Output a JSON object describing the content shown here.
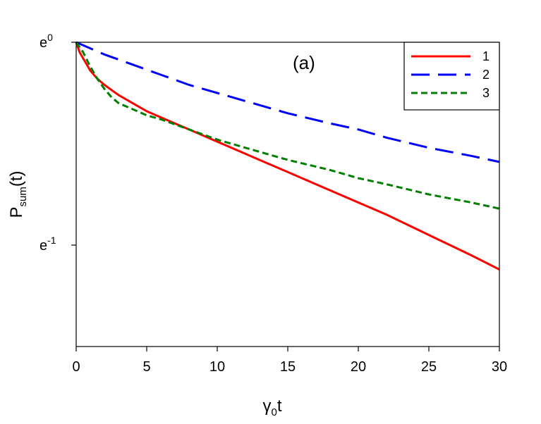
{
  "chart_data": {
    "type": "line",
    "panel_label": "(a)",
    "xlabel": {
      "symbol": "γ",
      "subscript": "0",
      "suffix": "t"
    },
    "ylabel": {
      "base": "P",
      "subscript": "sum",
      "suffix": "(t)"
    },
    "xlim": [
      0,
      30
    ],
    "ylim_ln": [
      -1.5,
      0
    ],
    "yscale": "log",
    "x_ticks": [
      0,
      5,
      10,
      15,
      20,
      25,
      30
    ],
    "y_ticks": [
      {
        "ln_value": 0,
        "base": "e",
        "exponent": "0"
      },
      {
        "ln_value": -1,
        "base": "e",
        "exponent": "-1"
      }
    ],
    "grid": false,
    "legend_position": "top-right",
    "series": [
      {
        "name": "1",
        "color": "#ff0000",
        "style": "solid",
        "x": [
          0,
          0.25,
          0.5,
          1,
          1.5,
          2,
          3,
          4,
          5,
          6,
          8,
          10,
          12,
          15,
          18,
          20,
          22,
          25,
          28,
          30
        ],
        "y_ln": [
          0,
          -0.05,
          -0.08,
          -0.14,
          -0.18,
          -0.21,
          -0.26,
          -0.3,
          -0.34,
          -0.37,
          -0.43,
          -0.49,
          -0.55,
          -0.64,
          -0.73,
          -0.79,
          -0.85,
          -0.95,
          -1.05,
          -1.12
        ]
      },
      {
        "name": "2",
        "color": "#0000ff",
        "style": "long-dash",
        "x": [
          0,
          2,
          4,
          6,
          8,
          10,
          12,
          15,
          18,
          20,
          22,
          25,
          28,
          30
        ],
        "y_ln": [
          0,
          -0.06,
          -0.11,
          -0.16,
          -0.21,
          -0.25,
          -0.29,
          -0.35,
          -0.4,
          -0.43,
          -0.47,
          -0.52,
          -0.56,
          -0.59
        ]
      },
      {
        "name": "3",
        "color": "#008000",
        "style": "short-dash",
        "x": [
          0,
          0.5,
          1,
          1.5,
          2,
          2.5,
          3,
          4,
          5,
          6,
          8,
          10,
          12,
          15,
          18,
          20,
          22,
          25,
          28,
          30
        ],
        "y_ln": [
          0,
          -0.05,
          -0.12,
          -0.18,
          -0.23,
          -0.27,
          -0.3,
          -0.33,
          -0.36,
          -0.38,
          -0.43,
          -0.48,
          -0.52,
          -0.58,
          -0.63,
          -0.67,
          -0.7,
          -0.75,
          -0.79,
          -0.82
        ]
      }
    ]
  }
}
